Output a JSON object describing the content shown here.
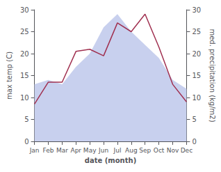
{
  "chart_data": {
    "type": "line",
    "categories": [
      "Jan",
      "Feb",
      "Mar",
      "Apr",
      "May",
      "Jun",
      "Jul",
      "Aug",
      "Sep",
      "Oct",
      "Nov",
      "Dec"
    ],
    "series": [
      {
        "type": "area",
        "color": "#c8d0ee",
        "axis": "y2",
        "values": [
          13,
          14,
          13,
          17,
          20,
          26,
          29,
          25,
          22,
          19,
          14,
          12
        ]
      },
      {
        "type": "line",
        "color": "#a03050",
        "values": [
          8.5,
          13.5,
          13.5,
          20.5,
          21.0,
          19.5,
          27.0,
          25.0,
          29.0,
          21.5,
          13.0,
          9.0
        ]
      }
    ],
    "xlabel": "date (month)",
    "ylabel": "max temp (C)",
    "y2label": "med. precipitation (kg/m2)",
    "ylim": [
      0,
      30
    ],
    "yticks": [
      0,
      5,
      10,
      15,
      20,
      25,
      30
    ],
    "y2lim": [
      0,
      30
    ],
    "y2ticks": [
      0,
      5,
      10,
      15,
      20,
      25,
      30
    ],
    "grid": false
  }
}
